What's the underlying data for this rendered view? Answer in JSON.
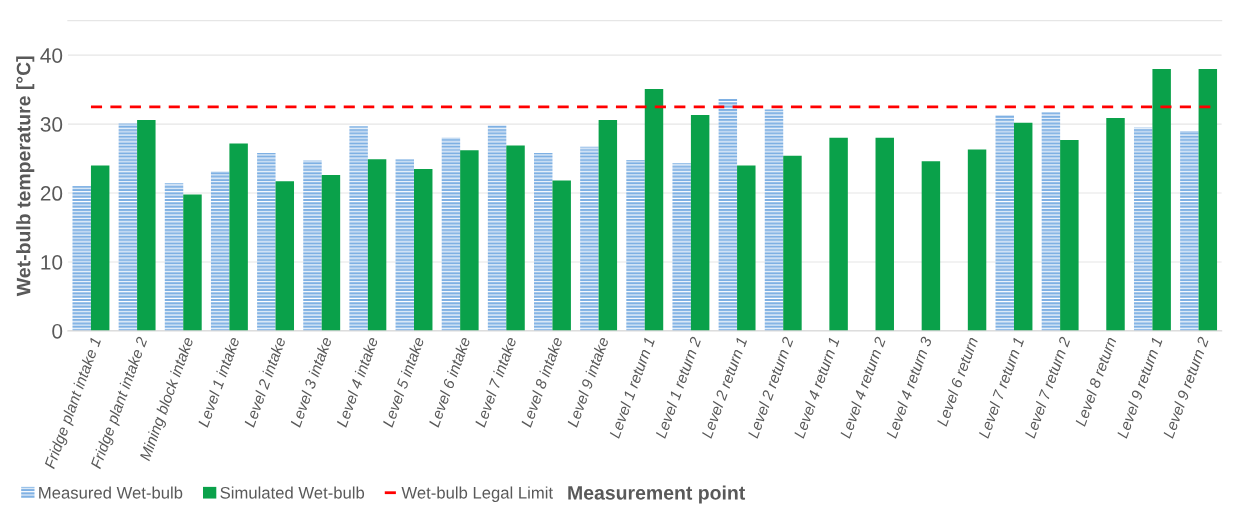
{
  "chart_data": {
    "type": "bar",
    "ylabel": "Wet-bulb temperature [°C]",
    "xlabel": "Measurement point",
    "categories": [
      "Fridge plant intake 1",
      "Fridge plant intake 2",
      "Mining block intake",
      "Level 1 intake",
      "Level 2 intake",
      "Level 3 intake",
      "Level 4 intake",
      "Level 5 intake",
      "Level 6 intake",
      "Level 7 intake",
      "Level 8 intake",
      "Level 9 intake",
      "Level 1 return 1",
      "Level 1 return 2",
      "Level 2 return 1",
      "Level 2 return 2",
      "Level 4 return 1",
      "Level 4 return 2",
      "Level 4 return 3",
      "Level 6 return",
      "Level 7 return 1",
      "Level 7 return 2",
      "Level 8 return",
      "Level 9 return 1",
      "Level 9 return 2"
    ],
    "series": [
      {
        "name": "Measured Wet-bulb",
        "color": "#7eb0e3",
        "values": [
          21.0,
          30.1,
          21.4,
          23.2,
          25.8,
          24.7,
          29.7,
          24.9,
          28.0,
          29.8,
          25.8,
          26.7,
          24.8,
          24.3,
          33.7,
          32.1,
          null,
          null,
          null,
          null,
          31.3,
          31.7,
          null,
          29.5,
          29.0
        ]
      },
      {
        "name": "Simulated Wet-bulb",
        "color": "#0aa14a",
        "values": [
          24.0,
          30.6,
          19.8,
          27.2,
          21.7,
          22.6,
          24.9,
          23.5,
          26.2,
          26.9,
          21.8,
          30.6,
          35.1,
          31.3,
          24.0,
          25.4,
          28.0,
          28.0,
          24.6,
          26.3,
          30.2,
          27.7,
          30.9,
          38.0,
          38.0
        ]
      }
    ],
    "ref_lines": [
      {
        "axis": "y",
        "value": 32.5,
        "label": "Wet-bulb Legal Limit",
        "color": "#ff0000",
        "line_style": "dashed"
      }
    ],
    "ylim": [
      0,
      45
    ],
    "yticks": [
      0,
      10,
      20,
      30,
      40
    ],
    "grid": "y",
    "legend": "bottom"
  }
}
